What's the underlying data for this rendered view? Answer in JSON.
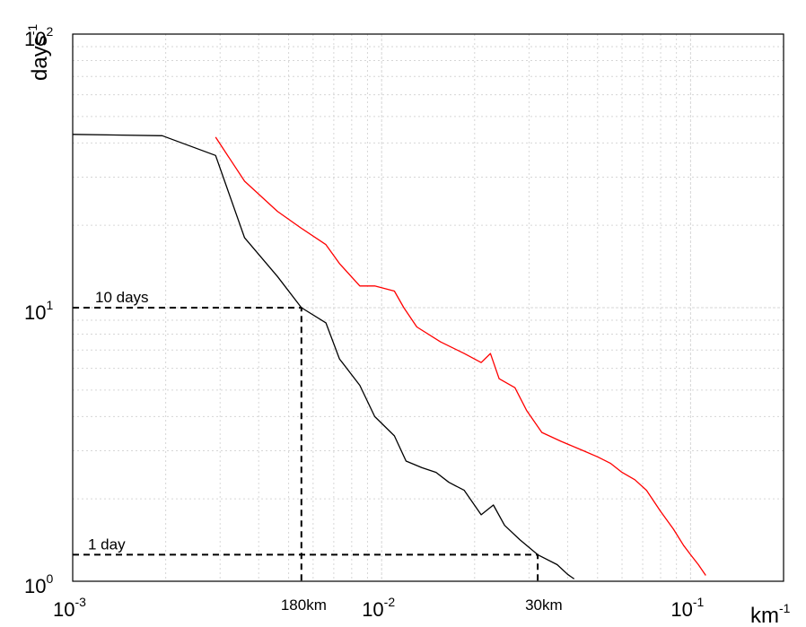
{
  "chart_data": {
    "type": "line",
    "xscale": "log",
    "yscale": "log",
    "xlim": [
      0.001,
      0.2
    ],
    "ylim": [
      1,
      100
    ],
    "grid": true,
    "x_ticks": [
      {
        "base": "10",
        "exp": "-3",
        "value": 0.001
      },
      {
        "base": "10",
        "exp": "-2",
        "value": 0.01
      },
      {
        "base": "10",
        "exp": "-1",
        "value": 0.1
      }
    ],
    "y_ticks": [
      {
        "base": "10",
        "exp": "0",
        "value": 1
      },
      {
        "base": "10",
        "exp": "1",
        "value": 10
      },
      {
        "base": "10",
        "exp": "2",
        "value": 100
      }
    ],
    "xlabel": {
      "base": "km",
      "exp": "-1"
    },
    "ylabel": {
      "base": "days",
      "exp": "-1"
    },
    "annotations": [
      {
        "text": "10 days",
        "x": 0.0055,
        "y": 10
      },
      {
        "text": "1 day",
        "x": 0.032,
        "y": 1.25
      },
      {
        "text": "180km",
        "x": 0.0055,
        "y": 1
      },
      {
        "text": "30km",
        "x": 0.032,
        "y": 1
      }
    ],
    "series": [
      {
        "color": "#000000",
        "style": "solid",
        "points": [
          [
            0.001,
            43
          ],
          [
            0.00195,
            42.5
          ],
          [
            0.0029,
            36
          ],
          [
            0.0036,
            18
          ],
          [
            0.0046,
            13
          ],
          [
            0.0055,
            10
          ],
          [
            0.0066,
            8.8
          ],
          [
            0.0073,
            6.5
          ],
          [
            0.0085,
            5.2
          ],
          [
            0.0095,
            4
          ],
          [
            0.011,
            3.4
          ],
          [
            0.012,
            2.75
          ],
          [
            0.0135,
            2.6
          ],
          [
            0.015,
            2.5
          ],
          [
            0.0165,
            2.3
          ],
          [
            0.0185,
            2.15
          ],
          [
            0.021,
            1.75
          ],
          [
            0.023,
            1.9
          ],
          [
            0.025,
            1.6
          ],
          [
            0.028,
            1.42
          ],
          [
            0.032,
            1.25
          ],
          [
            0.037,
            1.15
          ],
          [
            0.04,
            1.06
          ],
          [
            0.042,
            1.02
          ]
        ]
      },
      {
        "color": "#ff0000",
        "style": "solid",
        "points": [
          [
            0.0029,
            42
          ],
          [
            0.0036,
            29
          ],
          [
            0.0046,
            22.5
          ],
          [
            0.0055,
            19.5
          ],
          [
            0.0066,
            17
          ],
          [
            0.0073,
            14.5
          ],
          [
            0.0085,
            12
          ],
          [
            0.0095,
            12
          ],
          [
            0.011,
            11.5
          ],
          [
            0.0118,
            10
          ],
          [
            0.013,
            8.5
          ],
          [
            0.0155,
            7.5
          ],
          [
            0.0185,
            6.8
          ],
          [
            0.021,
            6.3
          ],
          [
            0.0225,
            6.8
          ],
          [
            0.024,
            5.5
          ],
          [
            0.027,
            5.1
          ],
          [
            0.0295,
            4.2
          ],
          [
            0.033,
            3.5
          ],
          [
            0.038,
            3.25
          ],
          [
            0.045,
            3
          ],
          [
            0.05,
            2.85
          ],
          [
            0.055,
            2.7
          ],
          [
            0.06,
            2.5
          ],
          [
            0.066,
            2.35
          ],
          [
            0.072,
            2.15
          ],
          [
            0.08,
            1.8
          ],
          [
            0.088,
            1.55
          ],
          [
            0.095,
            1.35
          ],
          [
            0.1,
            1.25
          ],
          [
            0.106,
            1.15
          ],
          [
            0.112,
            1.05
          ]
        ]
      },
      {
        "color": "#000000",
        "style": "dashed",
        "points": [
          [
            0.001,
            10
          ],
          [
            0.0055,
            10
          ],
          [
            0.0055,
            1
          ]
        ]
      },
      {
        "color": "#000000",
        "style": "dashed",
        "points": [
          [
            0.001,
            1.25
          ],
          [
            0.032,
            1.25
          ],
          [
            0.032,
            1
          ]
        ]
      }
    ]
  }
}
